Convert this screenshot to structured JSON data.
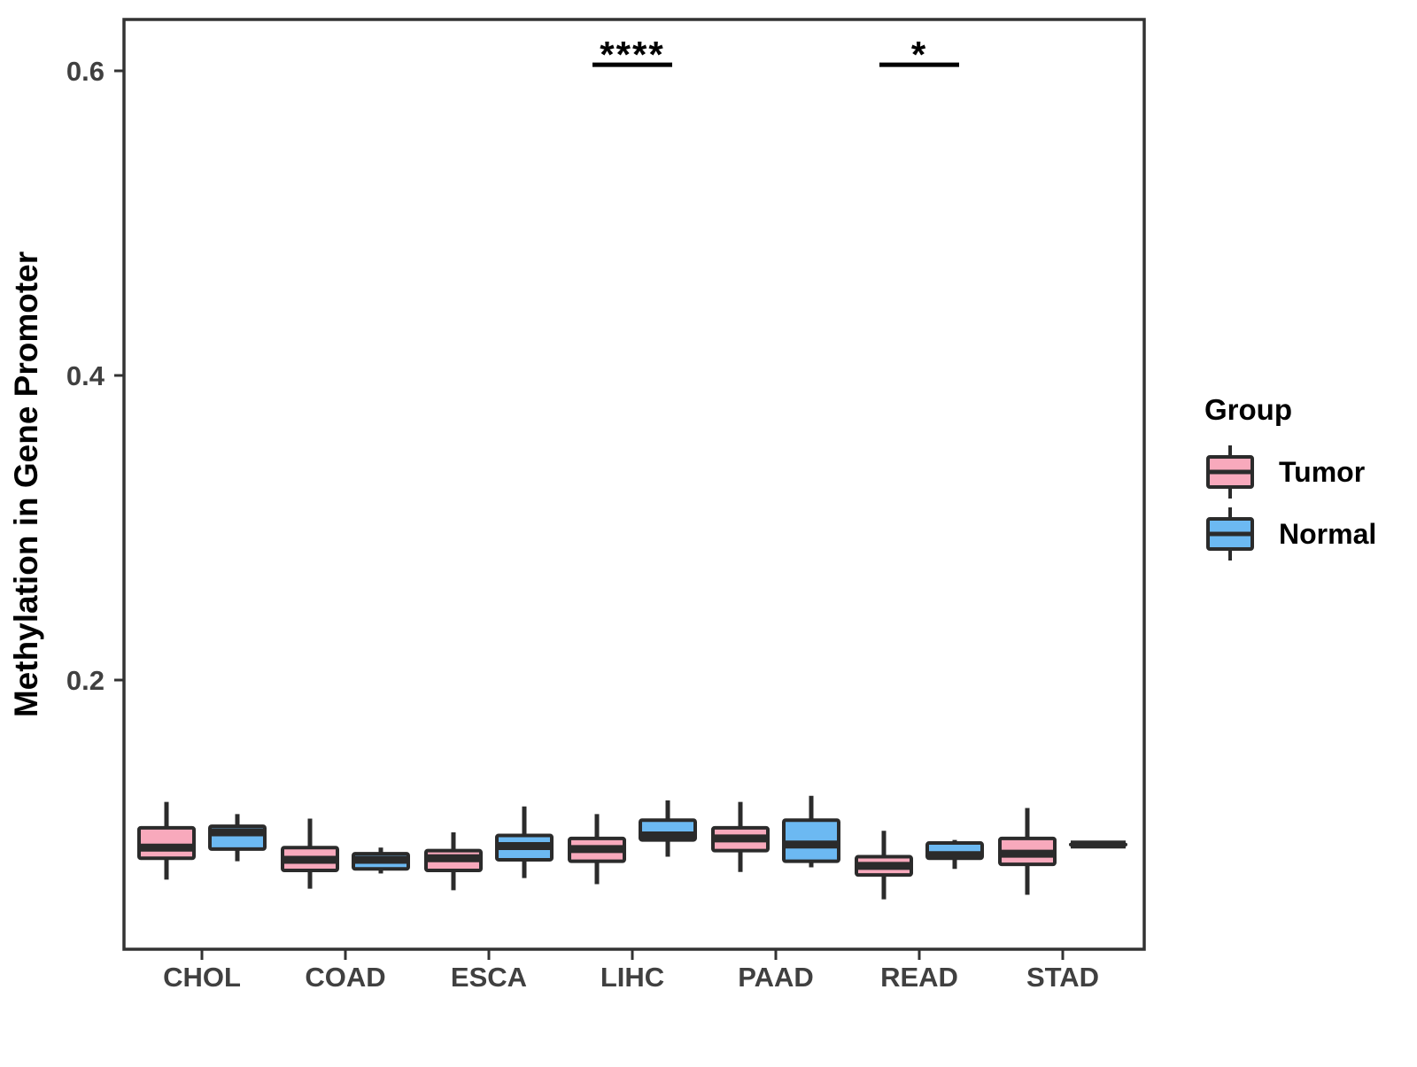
{
  "chart_data": {
    "type": "grouped_boxplot",
    "title": "",
    "xlabel": "",
    "ylabel": "Methylation in Gene Promoter",
    "categories": [
      "CHOL",
      "COAD",
      "ESCA",
      "LIHC",
      "PAAD",
      "READ",
      "STAD"
    ],
    "y_axis": {
      "ticks": [
        0.2,
        0.4,
        0.6
      ],
      "range": [
        0.02,
        0.63
      ],
      "grid": false
    },
    "legend": {
      "title": "Group",
      "position": "right"
    },
    "series": [
      {
        "name": "Tumor",
        "fill": "#F8A9BC",
        "boxes": [
          {
            "category": "CHOL",
            "min": 0.069,
            "q1": 0.083,
            "median": 0.09,
            "q3": 0.103,
            "max": 0.12
          },
          {
            "category": "COAD",
            "min": 0.063,
            "q1": 0.075,
            "median": 0.082,
            "q3": 0.09,
            "max": 0.109
          },
          {
            "category": "ESCA",
            "min": 0.062,
            "q1": 0.075,
            "median": 0.083,
            "q3": 0.088,
            "max": 0.1
          },
          {
            "category": "LIHC",
            "min": 0.066,
            "q1": 0.081,
            "median": 0.089,
            "q3": 0.096,
            "max": 0.112
          },
          {
            "category": "PAAD",
            "min": 0.074,
            "q1": 0.088,
            "median": 0.096,
            "q3": 0.103,
            "max": 0.12
          },
          {
            "category": "READ",
            "min": 0.056,
            "q1": 0.072,
            "median": 0.078,
            "q3": 0.084,
            "max": 0.101
          },
          {
            "category": "STAD",
            "min": 0.059,
            "q1": 0.079,
            "median": 0.086,
            "q3": 0.096,
            "max": 0.116
          }
        ]
      },
      {
        "name": "Normal",
        "fill": "#6CB9F2",
        "boxes": [
          {
            "category": "CHOL",
            "min": 0.081,
            "q1": 0.089,
            "median": 0.1,
            "q3": 0.104,
            "max": 0.112
          },
          {
            "category": "COAD",
            "min": 0.073,
            "q1": 0.076,
            "median": 0.082,
            "q3": 0.086,
            "max": 0.09
          },
          {
            "category": "ESCA",
            "min": 0.07,
            "q1": 0.082,
            "median": 0.091,
            "q3": 0.098,
            "max": 0.117
          },
          {
            "category": "LIHC",
            "min": 0.084,
            "q1": 0.095,
            "median": 0.098,
            "q3": 0.108,
            "max": 0.121
          },
          {
            "category": "PAAD",
            "min": 0.077,
            "q1": 0.081,
            "median": 0.092,
            "q3": 0.108,
            "max": 0.124
          },
          {
            "category": "READ",
            "min": 0.076,
            "q1": 0.083,
            "median": 0.085,
            "q3": 0.093,
            "max": 0.095
          },
          {
            "category": "STAD",
            "min": 0.092,
            "q1": 0.092,
            "median": 0.092,
            "q3": 0.092,
            "max": 0.092
          }
        ]
      }
    ],
    "significance": [
      {
        "category": "LIHC",
        "label": "****",
        "bracket_y": 0.604
      },
      {
        "category": "READ",
        "label": "*",
        "bracket_y": 0.604
      }
    ],
    "style": {
      "box_stroke": "#2b2b2b",
      "panel_border": "#333333",
      "axis_text": "#404040",
      "annotation_color": "#000000"
    }
  }
}
